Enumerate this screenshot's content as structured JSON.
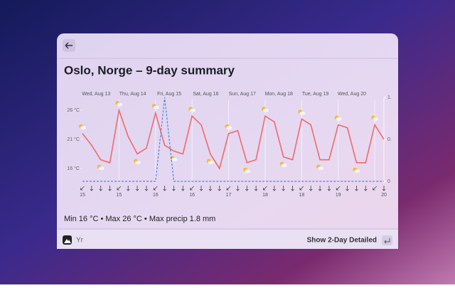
{
  "title": "Oslo, Norge – 9-day summary",
  "chart_data": {
    "type": "line",
    "x": [
      "15",
      null,
      null,
      null,
      "15",
      null,
      null,
      null,
      "16",
      null,
      null,
      null,
      "16",
      null,
      null,
      null,
      "17",
      null,
      null,
      null,
      "18",
      null,
      null,
      null,
      "18",
      null,
      null,
      null,
      "19",
      null,
      null,
      null,
      null,
      "20"
    ],
    "day_labels": [
      "Wed, Aug 13",
      "Thu, Aug 14",
      "Fri, Aug 15",
      "Sat, Aug 16",
      "Sun, Aug 17",
      "Mon, Aug 18",
      "Tue, Aug 19",
      "Wed, Aug 20"
    ],
    "series": [
      {
        "color": "#ef6b6b",
        "values": [
          22,
          20,
          17.5,
          17,
          26,
          21.5,
          18.5,
          19.5,
          25.5,
          20,
          19,
          18.5,
          25,
          23.5,
          18.5,
          16,
          22,
          22.5,
          17,
          17.5,
          25,
          24,
          18,
          17.5,
          24.5,
          23.5,
          17.5,
          17.5,
          23.5,
          23,
          17,
          17,
          23.5,
          21
        ]
      },
      {
        "color": "#4d84e8",
        "axis": "y2",
        "values": [
          0,
          0,
          0,
          0,
          0,
          0,
          0,
          0,
          0,
          1.8,
          0,
          0,
          0,
          0,
          0,
          0,
          0,
          0,
          0,
          0,
          0,
          0,
          0,
          0,
          0,
          0,
          0,
          0,
          0,
          0,
          0,
          0,
          0,
          0
        ]
      }
    ],
    "ylim": [
      13.8,
      28.2
    ],
    "yticks": [
      {
        "value": 16,
        "label": "16 °C"
      },
      {
        "value": 21,
        "label": "21 °C"
      },
      {
        "value": 26,
        "label": "26 °C"
      }
    ],
    "y2lim": [
      0,
      1.8
    ],
    "y2ticks": [
      {
        "value": 1.8,
        "label": "1."
      },
      {
        "value": 0.9,
        "label": "0."
      },
      0
    ]
  },
  "summary": "Min 16 °C • Max 26 °C • Max precip 1.8 mm",
  "footer": {
    "app": "Yr",
    "action": "Show 2-Day Detailed"
  }
}
